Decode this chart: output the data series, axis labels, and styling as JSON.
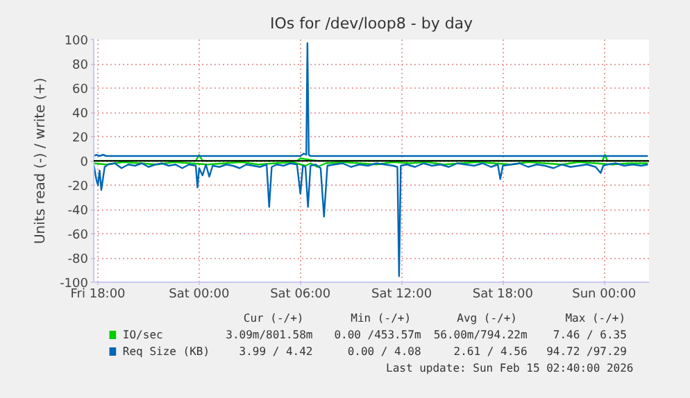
{
  "chart_data": {
    "type": "line",
    "title": "IOs for /dev/loop8 - by day",
    "ylabel": "Units read (-) / write (+)",
    "xlim": [
      "2026-02-13T17:45",
      "2026-02-15T02:40"
    ],
    "ylim": [
      -100,
      100
    ],
    "xticks": [
      {
        "value": "2026-02-13T18:00",
        "label": "Fri 18:00"
      },
      {
        "value": "2026-02-14T00:00",
        "label": "Sat 00:00"
      },
      {
        "value": "2026-02-14T06:00",
        "label": "Sat 06:00"
      },
      {
        "value": "2026-02-14T12:00",
        "label": "Sat 12:00"
      },
      {
        "value": "2026-02-14T18:00",
        "label": "Sat 18:00"
      },
      {
        "value": "2026-02-15T00:00",
        "label": "Sun 00:00"
      }
    ],
    "yticks": [
      -100,
      -80,
      -60,
      -40,
      -20,
      0,
      20,
      40,
      60,
      80,
      100
    ],
    "grid": true,
    "legend": "bottom left",
    "line_style": "solid",
    "marker": "none",
    "ref_lines": [
      {
        "axis": "y",
        "value": 0,
        "color": "#000000"
      }
    ],
    "series": [
      {
        "name": "IO/sec",
        "color": "#00cc00",
        "x": [
          "2026-02-13T17:45",
          "2026-02-13T18:30",
          "2026-02-13T19:30",
          "2026-02-13T20:30",
          "2026-02-13T21:30",
          "2026-02-13T22:30",
          "2026-02-13T23:30",
          "2026-02-14T00:30",
          "2026-02-14T01:30",
          "2026-02-14T02:30",
          "2026-02-14T03:30",
          "2026-02-14T04:30",
          "2026-02-14T05:30",
          "2026-02-14T06:18",
          "2026-02-14T06:36",
          "2026-02-14T07:00",
          "2026-02-14T07:30",
          "2026-02-14T08:30",
          "2026-02-14T09:30",
          "2026-02-14T10:30",
          "2026-02-14T11:30",
          "2026-02-14T12:30",
          "2026-02-14T13:30",
          "2026-02-14T14:30",
          "2026-02-14T15:30",
          "2026-02-14T16:30",
          "2026-02-14T17:30",
          "2026-02-14T18:30",
          "2026-02-14T19:30",
          "2026-02-14T20:30",
          "2026-02-14T21:30",
          "2026-02-14T22:30",
          "2026-02-14T23:30",
          "2026-02-15T00:30",
          "2026-02-15T01:30",
          "2026-02-15T02:36"
        ],
        "values": [
          -2,
          -3,
          -1,
          -2,
          -3,
          -1,
          -2,
          -3,
          -2,
          -1,
          -3,
          -2,
          -1,
          -4,
          -2,
          -5,
          -2,
          -1,
          -2,
          -3,
          -1,
          -2,
          -1,
          -3,
          -2,
          -1,
          -2,
          -3,
          -1,
          -2,
          -3,
          -1,
          -2,
          -3,
          -2,
          -2
        ]
      },
      {
        "color": "#00cc00",
        "x": [
          "2026-02-13T17:45",
          "2026-02-13T18:30",
          "2026-02-13T23:48",
          "2026-02-14T00:00",
          "2026-02-14T00:12",
          "2026-02-14T05:48",
          "2026-02-14T06:00",
          "2026-02-14T06:30",
          "2026-02-14T07:00",
          "2026-02-14T23:54",
          "2026-02-15T00:03",
          "2026-02-15T00:12",
          "2026-02-15T02:36"
        ],
        "values": [
          0,
          0,
          0,
          5,
          0,
          0,
          2,
          1,
          0,
          0,
          5,
          0,
          0
        ]
      },
      {
        "name": "Req Size (KB)",
        "color": "#0066b3",
        "x": [
          "2026-02-13T17:45",
          "2026-02-13T17:54",
          "2026-02-13T18:00",
          "2026-02-13T18:06",
          "2026-02-13T18:12",
          "2026-02-13T18:24",
          "2026-02-13T18:36",
          "2026-02-13T19:00",
          "2026-02-13T19:24",
          "2026-02-13T19:48",
          "2026-02-13T20:12",
          "2026-02-13T20:36",
          "2026-02-13T21:00",
          "2026-02-13T21:24",
          "2026-02-13T21:48",
          "2026-02-13T22:12",
          "2026-02-13T22:36",
          "2026-02-13T23:00",
          "2026-02-13T23:24",
          "2026-02-13T23:48",
          "2026-02-13T23:54",
          "2026-02-14T00:00",
          "2026-02-14T00:12",
          "2026-02-14T00:24",
          "2026-02-14T00:36",
          "2026-02-14T00:48",
          "2026-02-14T01:12",
          "2026-02-14T01:36",
          "2026-02-14T02:00",
          "2026-02-14T02:24",
          "2026-02-14T02:48",
          "2026-02-14T03:12",
          "2026-02-14T03:36",
          "2026-02-14T04:00",
          "2026-02-14T04:09",
          "2026-02-14T04:18",
          "2026-02-14T04:36",
          "2026-02-14T05:00",
          "2026-02-14T05:24",
          "2026-02-14T05:48",
          "2026-02-14T06:00",
          "2026-02-14T06:09",
          "2026-02-14T06:18",
          "2026-02-14T06:27",
          "2026-02-14T06:36",
          "2026-02-14T06:54",
          "2026-02-14T07:12",
          "2026-02-14T07:24",
          "2026-02-14T07:36",
          "2026-02-14T08:00",
          "2026-02-14T08:30",
          "2026-02-14T09:00",
          "2026-02-14T09:30",
          "2026-02-14T10:00",
          "2026-02-14T10:30",
          "2026-02-14T11:00",
          "2026-02-14T11:30",
          "2026-02-14T11:45",
          "2026-02-14T11:51",
          "2026-02-14T11:57",
          "2026-02-14T12:18",
          "2026-02-14T12:48",
          "2026-02-14T13:18",
          "2026-02-14T13:48",
          "2026-02-14T14:18",
          "2026-02-14T14:48",
          "2026-02-14T15:18",
          "2026-02-14T15:48",
          "2026-02-14T16:18",
          "2026-02-14T16:48",
          "2026-02-14T17:18",
          "2026-02-14T17:42",
          "2026-02-14T17:51",
          "2026-02-14T18:00",
          "2026-02-14T18:30",
          "2026-02-14T19:00",
          "2026-02-14T19:30",
          "2026-02-14T20:00",
          "2026-02-14T20:30",
          "2026-02-14T21:00",
          "2026-02-14T21:30",
          "2026-02-14T22:00",
          "2026-02-14T22:30",
          "2026-02-14T23:00",
          "2026-02-14T23:30",
          "2026-02-14T23:48",
          "2026-02-14T23:57",
          "2026-02-15T00:12",
          "2026-02-15T00:42",
          "2026-02-15T01:12",
          "2026-02-15T01:42",
          "2026-02-15T02:12",
          "2026-02-15T02:36"
        ],
        "values": [
          -3,
          -15,
          -20,
          -8,
          -24,
          -5,
          -3,
          -2,
          -6,
          -3,
          -4,
          -2,
          -5,
          -3,
          -2,
          -4,
          -3,
          -6,
          -3,
          -4,
          -22,
          -6,
          -12,
          -3,
          -13,
          -4,
          -5,
          -3,
          -4,
          -6,
          -3,
          -4,
          -5,
          -3,
          -38,
          -5,
          -3,
          -4,
          -2,
          -3,
          -27,
          -4,
          -5,
          -38,
          -4,
          -3,
          -6,
          -46,
          -4,
          -3,
          -2,
          -5,
          -3,
          -4,
          -2,
          -3,
          -4,
          -5,
          -95,
          -4,
          -3,
          -5,
          -2,
          -4,
          -3,
          -5,
          -2,
          -3,
          -4,
          -2,
          -5,
          -3,
          -15,
          -4,
          -3,
          -2,
          -5,
          -3,
          -4,
          -6,
          -3,
          -5,
          -4,
          -3,
          -5,
          -10,
          -4,
          -3,
          -2,
          -4,
          -3,
          -4,
          -3
        ]
      },
      {
        "color": "#0066b3",
        "x": [
          "2026-02-13T17:45",
          "2026-02-13T17:54",
          "2026-02-13T18:06",
          "2026-02-13T18:18",
          "2026-02-13T18:30",
          "2026-02-14T06:00",
          "2026-02-14T06:12",
          "2026-02-14T06:21",
          "2026-02-14T06:25",
          "2026-02-14T06:30",
          "2026-02-14T06:36",
          "2026-02-14T06:48",
          "2026-02-15T02:36"
        ],
        "values": [
          4,
          5,
          4,
          5,
          4,
          4,
          6,
          5,
          97,
          5,
          4,
          4,
          4
        ]
      }
    ],
    "annotations": [
      "Cur (-/+)",
      "Min (-/+)",
      "Avg (-/+)",
      "Max (-/+)",
      "3.09m/801.58m",
      "0.00 /453.57m",
      "56.00m/794.22m",
      "7.46 / 6.35",
      "3.99 / 4.42",
      "0.00 / 4.08",
      "2.61 / 4.56",
      "94.72 /97.29",
      "Last update: Sun Feb 15 02:40:00 2026"
    ]
  }
}
